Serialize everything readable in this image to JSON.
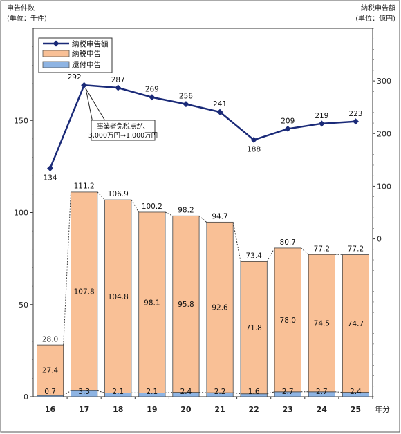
{
  "chart_data": {
    "type": "bar",
    "left_axis_title": "申告件数",
    "left_axis_unit": "(単位：千件)",
    "right_axis_title": "納税申告額",
    "right_axis_unit": "(単位：億円)",
    "x_unit": "年分",
    "categories": [
      "16",
      "17",
      "18",
      "19",
      "20",
      "21",
      "22",
      "23",
      "24",
      "25"
    ],
    "y_left_range": [
      0,
      200
    ],
    "y_left_ticks": [
      "0",
      "50",
      "100",
      "150"
    ],
    "y_right_range": [
      -300,
      400
    ],
    "y_right_ticks": [
      "0",
      "100",
      "200",
      "300"
    ],
    "legend_position": "top-left",
    "series": [
      {
        "name": "納税申告額",
        "type": "line",
        "axis": "right",
        "color": "#1a2a78",
        "values": [
          134,
          292,
          287,
          269,
          256,
          241,
          188,
          209,
          219,
          223
        ],
        "labels": [
          "134",
          "292",
          "287",
          "269",
          "256",
          "241",
          "188",
          "209",
          "219",
          "223"
        ]
      },
      {
        "name": "納税申告",
        "type": "bar",
        "axis": "left",
        "color": "#f9c096",
        "values": [
          27.4,
          107.8,
          104.8,
          98.1,
          95.8,
          92.6,
          71.8,
          78.0,
          74.5,
          74.7
        ],
        "labels": [
          "27.4",
          "107.8",
          "104.8",
          "98.1",
          "95.8",
          "92.6",
          "71.8",
          "78.0",
          "74.5",
          "74.7"
        ]
      },
      {
        "name": "還付申告",
        "type": "bar",
        "axis": "left",
        "color": "#8eb4e3",
        "values": [
          0.7,
          3.3,
          2.1,
          2.1,
          2.4,
          2.2,
          1.6,
          2.7,
          2.7,
          2.4
        ],
        "labels": [
          "0.7",
          "3.3",
          "2.1",
          "2.1",
          "2.4",
          "2.2",
          "1.6",
          "2.7",
          "2.7",
          "2.4"
        ]
      }
    ],
    "totals": [
      28.0,
      111.2,
      106.9,
      100.2,
      98.2,
      94.7,
      73.4,
      80.7,
      77.2,
      77.2
    ],
    "total_labels": [
      "28.0",
      "111.2",
      "106.9",
      "100.2",
      "98.2",
      "94.7",
      "73.4",
      "80.7",
      "77.2",
      "77.2"
    ],
    "annotation": {
      "line1": "事業者免税点が、",
      "line2": "3,000万円→1,000万円",
      "category": "17"
    }
  }
}
